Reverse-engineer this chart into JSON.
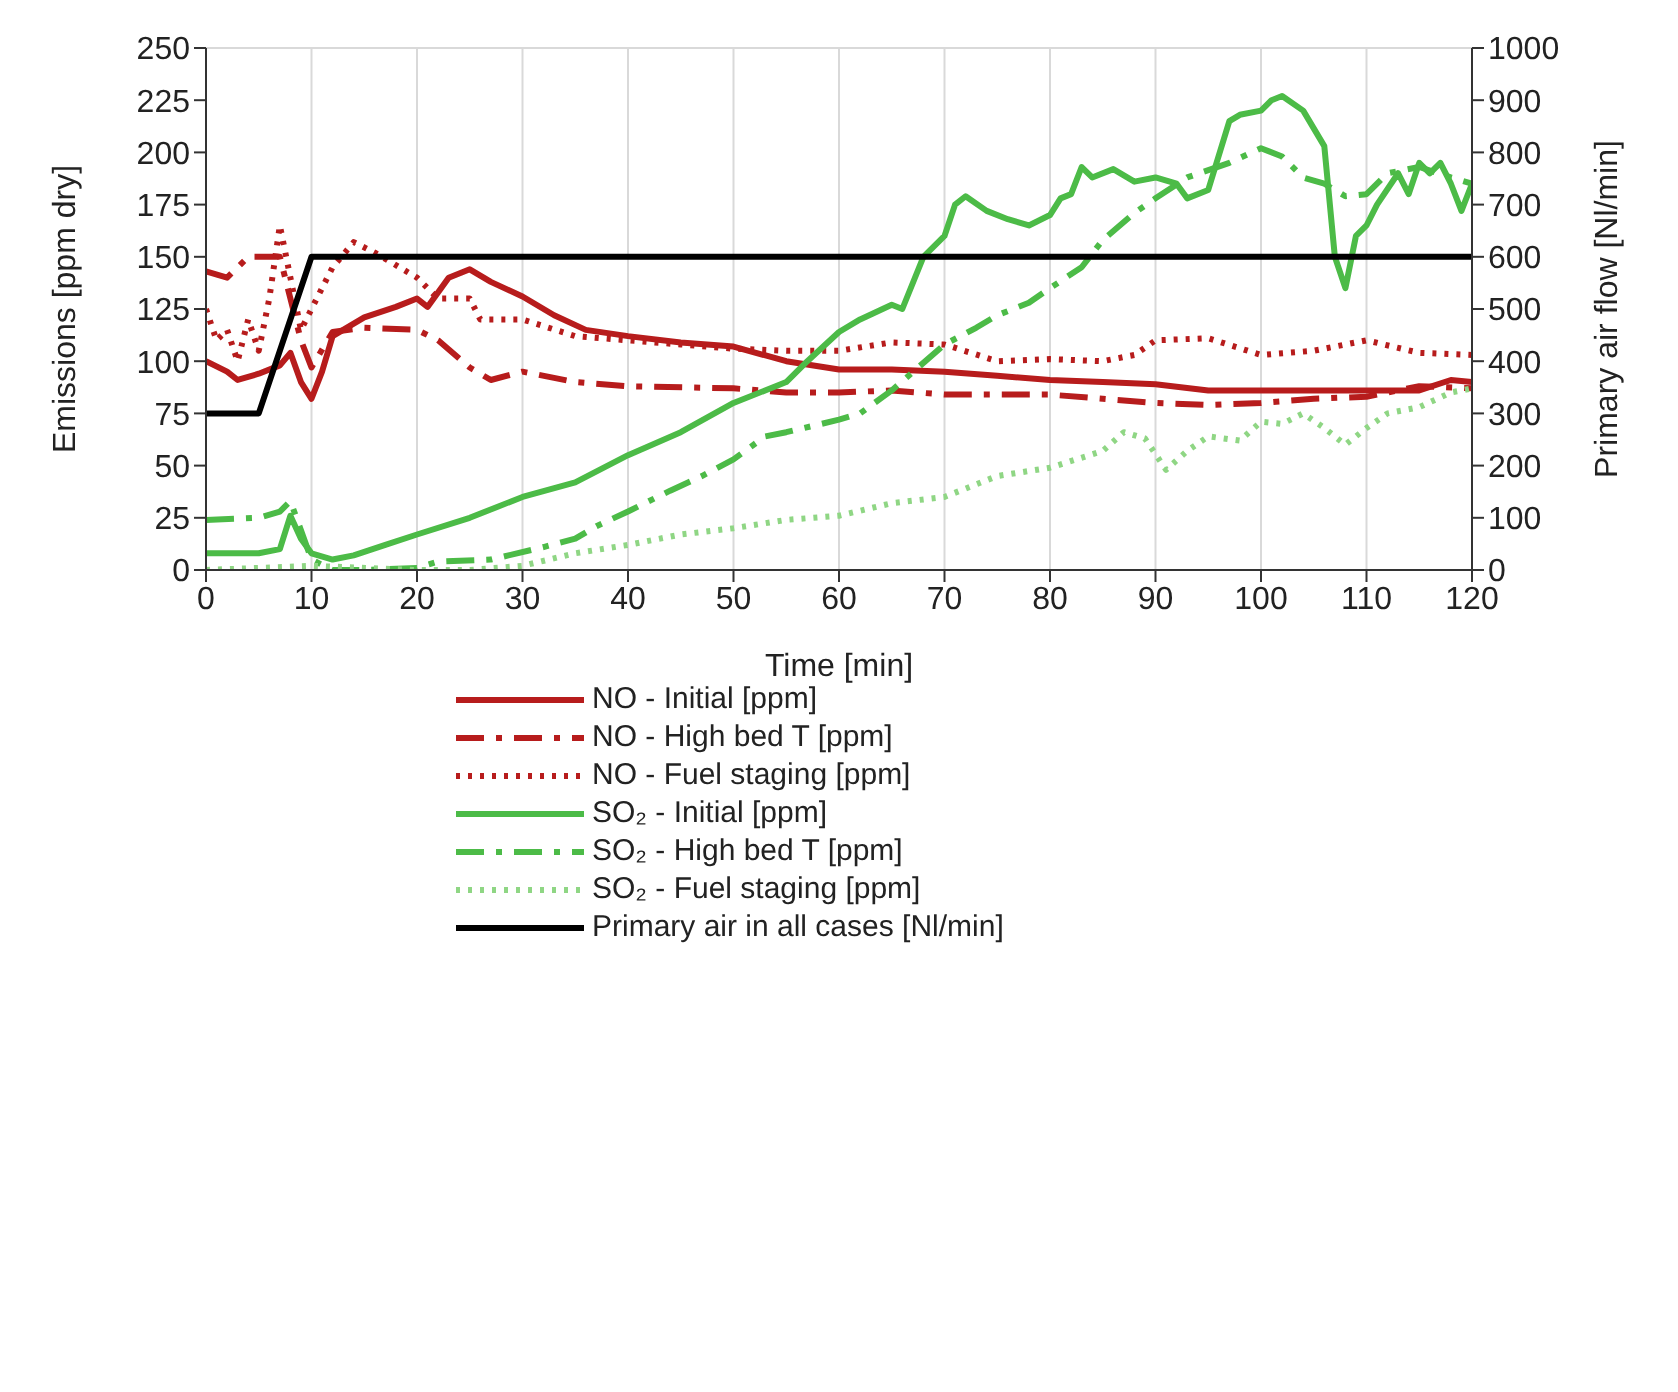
{
  "chart_data": {
    "type": "line",
    "xlabel": "Time [min]",
    "ylabel": "Emissions [ppm dry]",
    "y2label": "Primary air flow [Nl/min]",
    "xlim": [
      0,
      120
    ],
    "xticks": [
      0,
      10,
      20,
      30,
      40,
      50,
      60,
      70,
      80,
      90,
      100,
      110,
      120
    ],
    "ylim": [
      0,
      250
    ],
    "yticks": [
      0,
      25,
      50,
      75,
      100,
      125,
      150,
      175,
      200,
      225,
      250
    ],
    "y2lim": [
      0,
      1000
    ],
    "y2ticks": [
      0,
      100,
      200,
      300,
      400,
      500,
      600,
      700,
      800,
      900,
      1000
    ],
    "grid": true,
    "legend": "bottom",
    "marker": "none",
    "series": [
      {
        "name": "NO - Initial [ppm]",
        "color": "#b71c1c",
        "line_style": "solid",
        "x": [
          0,
          2,
          3,
          5,
          7,
          8,
          9,
          10,
          11,
          12,
          15,
          18,
          20,
          21,
          23,
          25,
          27,
          30,
          33,
          36,
          40,
          45,
          50,
          55,
          60,
          65,
          70,
          75,
          80,
          85,
          90,
          95,
          100,
          105,
          110,
          115,
          118,
          120
        ],
        "values": [
          100,
          95,
          91,
          94,
          98,
          104,
          90,
          82,
          95,
          112,
          121,
          126,
          130,
          126,
          140,
          144,
          138,
          131,
          122,
          115,
          112,
          109,
          107,
          100,
          96,
          96,
          95,
          93,
          91,
          90,
          89,
          86,
          86,
          86,
          86,
          86,
          91,
          90
        ]
      },
      {
        "name": "NO - High bed T [ppm]",
        "color": "#b71c1c",
        "line_style": "dashed",
        "x": [
          0,
          2,
          4,
          7,
          8,
          9,
          10,
          12,
          15,
          20,
          22,
          25,
          27,
          30,
          35,
          40,
          50,
          55,
          60,
          65,
          70,
          80,
          85,
          90,
          95,
          100,
          105,
          110,
          115,
          120
        ],
        "values": [
          143,
          140,
          150,
          150,
          130,
          110,
          97,
          114,
          116,
          115,
          110,
          97,
          91,
          95,
          90,
          88,
          87,
          85,
          85,
          86,
          84,
          84,
          82,
          80,
          79,
          80,
          82,
          83,
          88,
          87
        ]
      },
      {
        "name": "NO - Fuel staging [ppm]",
        "color": "#b71c1c",
        "line_style": "dotted",
        "x": [
          0,
          1,
          2,
          3,
          4,
          5,
          6,
          7,
          8,
          9,
          10,
          12,
          14,
          16,
          20,
          22,
          25,
          26,
          30,
          35,
          40,
          45,
          50,
          55,
          60,
          65,
          70,
          75,
          80,
          85,
          88,
          90,
          95,
          100,
          105,
          110,
          115,
          120
        ],
        "values": [
          125,
          110,
          115,
          100,
          120,
          105,
          130,
          165,
          140,
          115,
          125,
          145,
          157,
          152,
          140,
          130,
          130,
          120,
          120,
          112,
          110,
          108,
          106,
          105,
          105,
          109,
          108,
          100,
          101,
          100,
          103,
          110,
          111,
          103,
          105,
          110,
          104,
          103
        ]
      },
      {
        "name": "SO₂ - Initial [ppm]",
        "color": "#4cbb47",
        "line_style": "solid",
        "x": [
          0,
          5,
          7,
          8,
          9,
          10,
          12,
          14,
          17,
          20,
          25,
          30,
          35,
          40,
          45,
          50,
          55,
          57,
          60,
          62,
          65,
          66,
          68,
          70,
          71,
          72,
          74,
          76,
          78,
          80,
          81,
          82,
          83,
          84,
          86,
          88,
          90,
          92,
          93,
          95,
          97,
          98,
          100,
          101,
          102,
          104,
          106,
          107,
          108,
          109,
          110,
          111,
          113,
          114,
          115,
          116,
          117,
          118,
          119,
          120
        ],
        "values": [
          8,
          8,
          10,
          26,
          15,
          8,
          5,
          7,
          12,
          17,
          25,
          35,
          42,
          55,
          66,
          80,
          90,
          100,
          114,
          120,
          127,
          125,
          150,
          160,
          175,
          179,
          172,
          168,
          165,
          170,
          178,
          180,
          193,
          188,
          192,
          186,
          188,
          185,
          178,
          182,
          215,
          218,
          220,
          225,
          227,
          220,
          203,
          150,
          135,
          160,
          165,
          175,
          190,
          180,
          195,
          190,
          195,
          185,
          172,
          185
        ]
      },
      {
        "name": "SO₂ - High bed T [ppm]",
        "color": "#4cbb47",
        "line_style": "dashed",
        "x": [
          0,
          5,
          7,
          8,
          10,
          12,
          15,
          20,
          22,
          27,
          32,
          35,
          37,
          40,
          44,
          47,
          50,
          53,
          55,
          60,
          62,
          65,
          70,
          73,
          75,
          78,
          80,
          83,
          85,
          88,
          90,
          93,
          97,
          100,
          102,
          104,
          106,
          108,
          110,
          112,
          115,
          118,
          120
        ],
        "values": [
          24,
          25,
          28,
          33,
          5,
          0,
          0,
          1,
          4,
          5,
          11,
          15,
          21,
          28,
          38,
          45,
          53,
          64,
          66,
          72,
          75,
          86,
          108,
          116,
          122,
          128,
          135,
          145,
          158,
          171,
          178,
          188,
          195,
          202,
          198,
          188,
          185,
          179,
          180,
          190,
          193,
          188,
          185
        ]
      },
      {
        "name": "SO₂ - Fuel staging [ppm]",
        "color": "#8fd684",
        "line_style": "dotted",
        "x": [
          0,
          10,
          20,
          25,
          30,
          35,
          40,
          45,
          50,
          55,
          60,
          65,
          70,
          75,
          80,
          85,
          87,
          89,
          91,
          93,
          95,
          98,
          100,
          102,
          104,
          106,
          108,
          110,
          112,
          115,
          118,
          120
        ],
        "values": [
          0,
          2,
          0,
          0,
          2,
          8,
          12,
          17,
          20,
          24,
          26,
          32,
          35,
          45,
          49,
          57,
          66,
          63,
          48,
          57,
          64,
          62,
          71,
          70,
          75,
          68,
          60,
          68,
          75,
          78,
          85,
          87
        ]
      },
      {
        "name": "Primary air in all cases [Nl/min]",
        "color": "#000000",
        "line_style": "solid",
        "axis": "y2",
        "x": [
          0,
          5,
          10,
          120
        ],
        "values": [
          300,
          300,
          600,
          600
        ]
      }
    ]
  }
}
